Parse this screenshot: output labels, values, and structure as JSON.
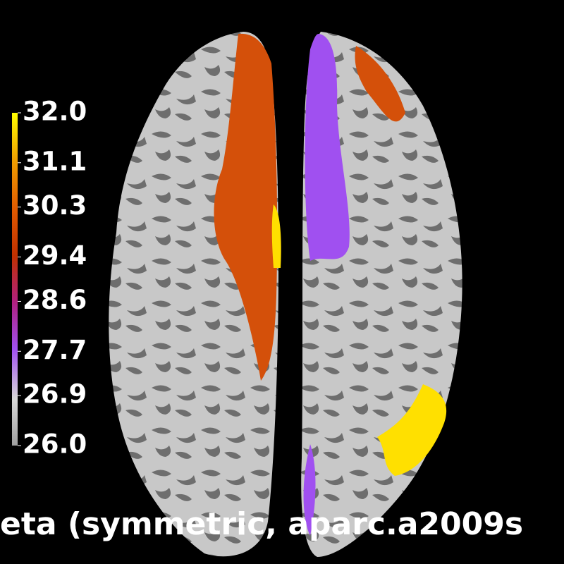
{
  "colorbar": {
    "lim": [
      26.0,
      32.0
    ],
    "ticks": [
      {
        "value": 32.0,
        "label": "32.0"
      },
      {
        "value": 31.1,
        "label": "31.1"
      },
      {
        "value": 30.3,
        "label": "30.3"
      },
      {
        "value": 29.4,
        "label": "29.4"
      },
      {
        "value": 28.6,
        "label": "28.6"
      },
      {
        "value": 27.7,
        "label": "27.7"
      },
      {
        "value": 26.9,
        "label": "26.9"
      },
      {
        "value": 26.0,
        "label": "26.0"
      }
    ]
  },
  "title": "eta (symmetric, aparc.a2009s"
}
